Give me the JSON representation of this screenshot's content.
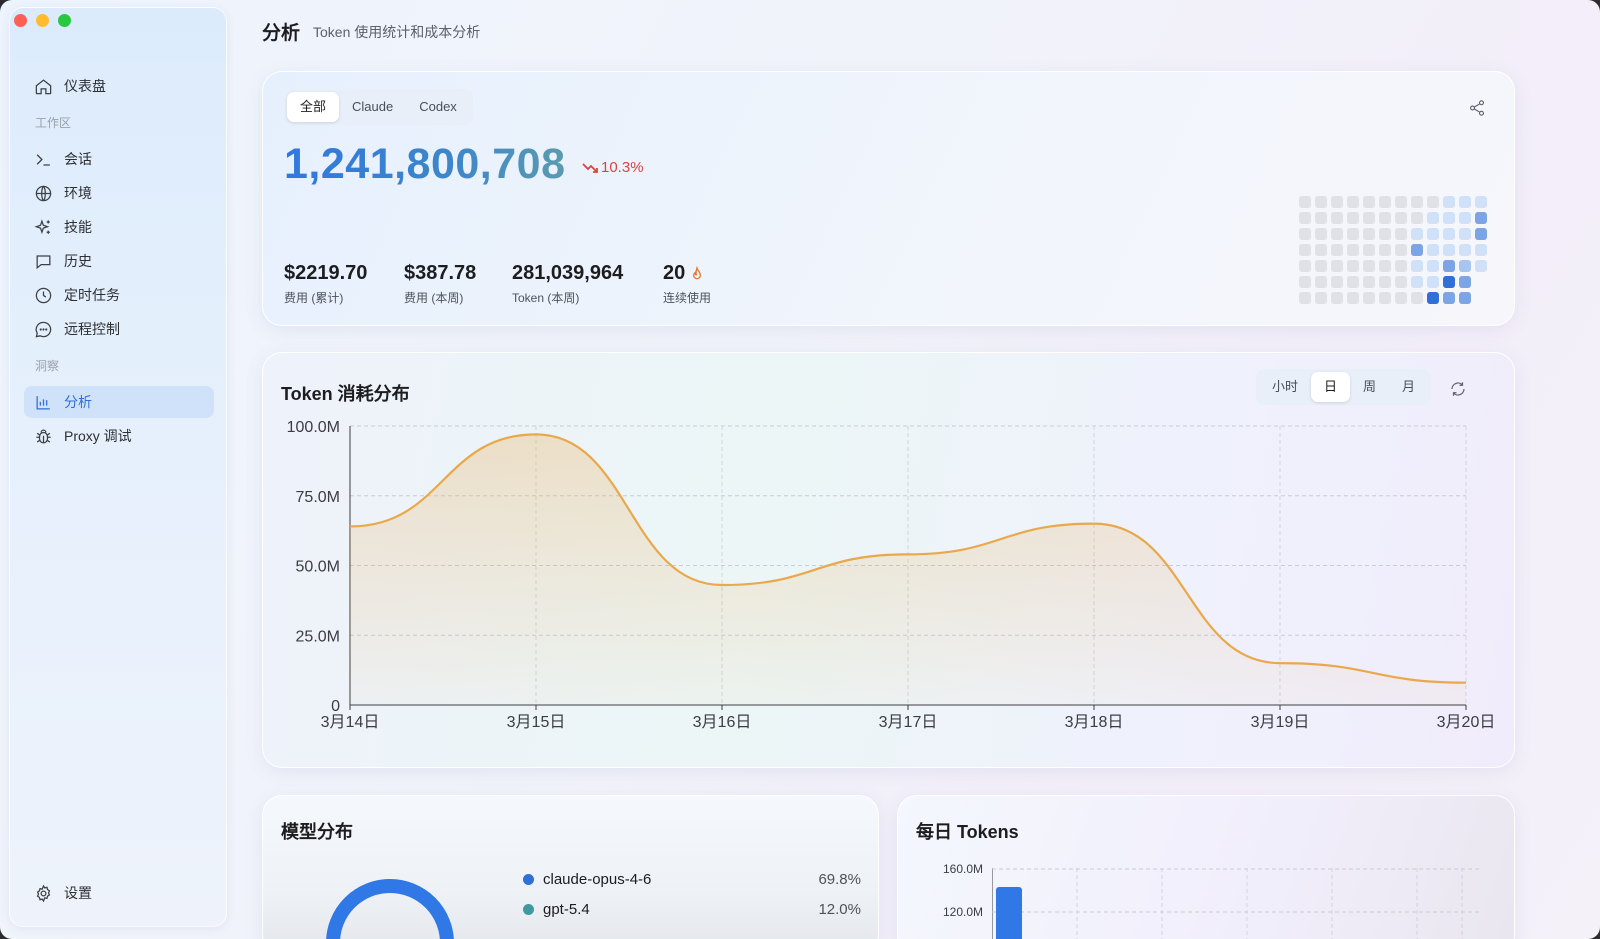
{
  "window": {
    "buttons": [
      "close",
      "minimize",
      "maximize"
    ]
  },
  "sidebar": {
    "items": [
      {
        "label": "仪表盘",
        "icon": "home-icon"
      },
      {
        "label": "会话",
        "icon": "terminal-icon"
      },
      {
        "label": "环境",
        "icon": "globe-icon"
      },
      {
        "label": "技能",
        "icon": "sparkles-icon"
      },
      {
        "label": "历史",
        "icon": "message-square-icon"
      },
      {
        "label": "定时任务",
        "icon": "clock-icon"
      },
      {
        "label": "远程控制",
        "icon": "message-circle-icon"
      },
      {
        "label": "分析",
        "icon": "bar-chart-icon",
        "active": true
      },
      {
        "label": "Proxy 调试",
        "icon": "bug-icon"
      }
    ],
    "sections": {
      "workspace": "工作区",
      "insights": "洞察"
    },
    "settings_label": "设置"
  },
  "header": {
    "title": "分析",
    "subtitle": "Token 使用统计和成本分析"
  },
  "overview": {
    "tabs": [
      "全部",
      "Claude",
      "Codex"
    ],
    "active_tab": "全部",
    "total_tokens": "1,241,800,708",
    "trend": "10.3%",
    "trend_color": "#d64541",
    "stats": [
      {
        "value": "$2219.70",
        "label": "费用 (累计)"
      },
      {
        "value": "$387.78",
        "label": "费用 (本周)"
      },
      {
        "value": "281,039,964",
        "label": "Token (本周)"
      },
      {
        "value": "20",
        "label": "连续使用"
      }
    ],
    "heatmap_levels": [
      [
        0,
        0,
        0,
        0,
        0,
        0,
        0,
        0,
        0,
        1,
        1,
        1
      ],
      [
        0,
        0,
        0,
        0,
        0,
        0,
        0,
        0,
        1,
        1,
        1,
        3
      ],
      [
        0,
        0,
        0,
        0,
        0,
        0,
        0,
        1,
        1,
        1,
        1,
        3
      ],
      [
        0,
        0,
        0,
        0,
        0,
        0,
        0,
        3,
        1,
        1,
        1,
        1
      ],
      [
        0,
        0,
        0,
        0,
        0,
        0,
        0,
        1,
        1,
        3,
        2,
        1
      ],
      [
        0,
        0,
        0,
        0,
        0,
        0,
        0,
        1,
        1,
        4,
        3,
        -1
      ],
      [
        0,
        0,
        0,
        0,
        0,
        0,
        0,
        0,
        4,
        3,
        3,
        -1
      ]
    ],
    "heatmap_colors": [
      "#dfe1e6",
      "#cfe0f7",
      "#a8c5ef",
      "#7ca5e6",
      "#2f6fd6"
    ]
  },
  "token_chart": {
    "title": "Token 消耗分布",
    "granularity": [
      "小时",
      "日",
      "周",
      "月"
    ],
    "active_granularity": "日",
    "line_color": "#e9a84a"
  },
  "chart_data": {
    "type": "area",
    "title": "Token 消耗分布",
    "categories": [
      "3月14日",
      "3月15日",
      "3月16日",
      "3月17日",
      "3月18日",
      "3月19日",
      "3月20日"
    ],
    "series": [
      {
        "values": [
          64000000,
          97000000,
          43000000,
          54000000,
          65000000,
          15000000,
          8000000
        ]
      }
    ],
    "ylim": [
      0,
      100000000
    ],
    "yticks": [
      "0",
      "25.0M",
      "50.0M",
      "75.0M",
      "100.0M"
    ],
    "grid": true
  },
  "model_dist": {
    "title": "模型分布",
    "items": [
      {
        "name": "claude-opus-4-6",
        "pct": "69.8%",
        "color": "#2f6fd6"
      },
      {
        "name": "gpt-5.4",
        "pct": "12.0%",
        "color": "#3f9aa0"
      }
    ]
  },
  "daily_tokens": {
    "title": "每日 Tokens",
    "yticks": [
      "160.0M",
      "120.0M"
    ],
    "bar_color": "#2f78e6"
  }
}
